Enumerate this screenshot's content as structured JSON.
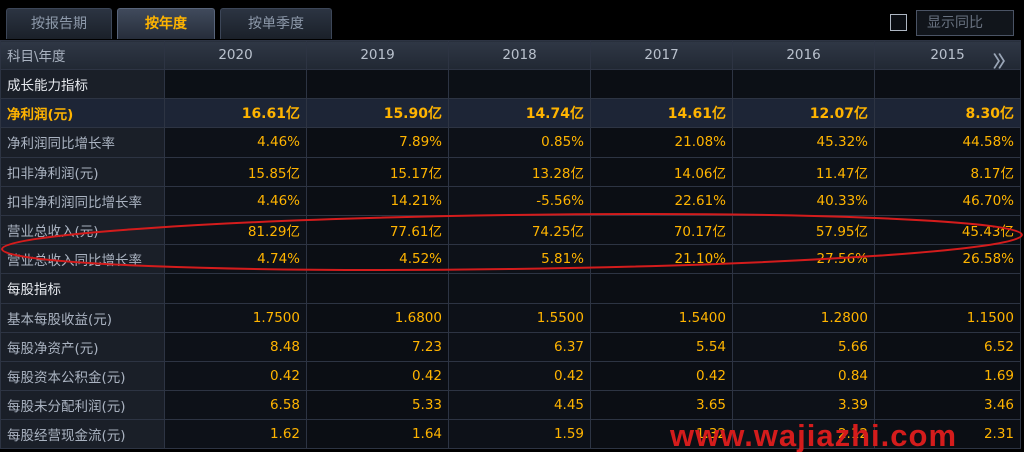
{
  "tabs": [
    {
      "label": "按报告期",
      "active": false
    },
    {
      "label": "按年度",
      "active": true
    },
    {
      "label": "按单季度",
      "active": false
    }
  ],
  "compare_label": "显示同比",
  "header": {
    "label": "科目\\年度",
    "years": [
      "2020",
      "2019",
      "2018",
      "2017",
      "2016",
      "2015"
    ]
  },
  "rows": [
    {
      "label": "成长能力指标",
      "type": "section",
      "values": [
        "",
        "",
        "",
        "",
        "",
        ""
      ]
    },
    {
      "label": "净利润(元)",
      "type": "highlight",
      "values": [
        "16.61亿",
        "15.90亿",
        "14.74亿",
        "14.61亿",
        "12.07亿",
        "8.30亿"
      ]
    },
    {
      "label": "净利润同比增长率",
      "type": "data",
      "values": [
        "4.46%",
        "7.89%",
        "0.85%",
        "21.08%",
        "45.32%",
        "44.58%"
      ]
    },
    {
      "label": "扣非净利润(元)",
      "type": "data",
      "values": [
        "15.85亿",
        "15.17亿",
        "13.28亿",
        "14.06亿",
        "11.47亿",
        "8.17亿"
      ]
    },
    {
      "label": "扣非净利润同比增长率",
      "type": "data",
      "values": [
        "4.46%",
        "14.21%",
        "-5.56%",
        "22.61%",
        "40.33%",
        "46.70%"
      ]
    },
    {
      "label": "营业总收入(元)",
      "type": "data",
      "values": [
        "81.29亿",
        "77.61亿",
        "74.25亿",
        "70.17亿",
        "57.95亿",
        "45.43亿"
      ]
    },
    {
      "label": "营业总收入同比增长率",
      "type": "data",
      "values": [
        "4.74%",
        "4.52%",
        "5.81%",
        "21.10%",
        "27.56%",
        "26.58%"
      ]
    },
    {
      "label": "每股指标",
      "type": "section",
      "values": [
        "",
        "",
        "",
        "",
        "",
        ""
      ]
    },
    {
      "label": "基本每股收益(元)",
      "type": "data",
      "values": [
        "1.7500",
        "1.6800",
        "1.5500",
        "1.5400",
        "1.2800",
        "1.1500"
      ]
    },
    {
      "label": "每股净资产(元)",
      "type": "data",
      "values": [
        "8.48",
        "7.23",
        "6.37",
        "5.54",
        "5.66",
        "6.52"
      ]
    },
    {
      "label": "每股资本公积金(元)",
      "type": "data",
      "values": [
        "0.42",
        "0.42",
        "0.42",
        "0.42",
        "0.84",
        "1.69"
      ]
    },
    {
      "label": "每股未分配利润(元)",
      "type": "data",
      "values": [
        "6.58",
        "5.33",
        "4.45",
        "3.65",
        "3.39",
        "3.46"
      ]
    },
    {
      "label": "每股经营现金流(元)",
      "type": "data",
      "values": [
        "1.62",
        "1.64",
        "1.59",
        "1.32",
        "2.12",
        "2.31"
      ]
    }
  ],
  "watermark": "www.wajiazhi.com",
  "colors": {
    "value": "#ffb400",
    "annotation": "#d41c1c"
  }
}
